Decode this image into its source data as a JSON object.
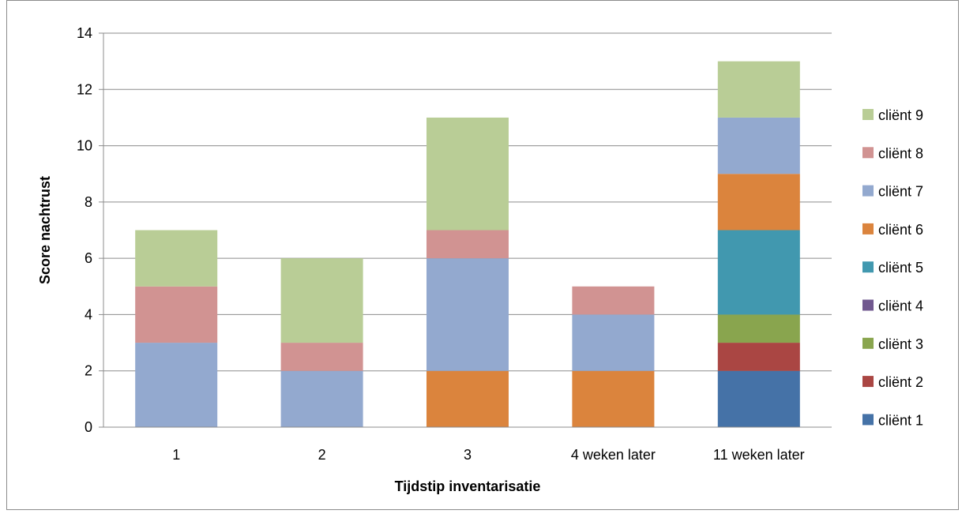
{
  "chart_data": {
    "type": "bar",
    "stacked": true,
    "title": "",
    "xlabel": "Tijdstip inventarisatie",
    "ylabel": "Score nachtrust",
    "ylim": [
      0,
      14
    ],
    "yticks": [
      "0",
      "2",
      "4",
      "6",
      "8",
      "10",
      "12",
      "14"
    ],
    "grid": true,
    "legend_position": "right",
    "categories": [
      "1",
      "2",
      "3",
      "4 weken later",
      "11 weken later"
    ],
    "series": [
      {
        "name": "cliënt 1",
        "color": "#4572a7",
        "values": [
          0,
          0,
          0,
          0,
          2
        ]
      },
      {
        "name": "cliënt 2",
        "color": "#aa4643",
        "values": [
          0,
          0,
          0,
          0,
          1
        ]
      },
      {
        "name": "cliënt 3",
        "color": "#89a54e",
        "values": [
          0,
          0,
          0,
          0,
          1
        ]
      },
      {
        "name": "cliënt 4",
        "color": "#71588f",
        "values": [
          0,
          0,
          0,
          0,
          0
        ]
      },
      {
        "name": "cliënt 5",
        "color": "#4198af",
        "values": [
          0,
          0,
          0,
          0,
          3
        ]
      },
      {
        "name": "cliënt 6",
        "color": "#db843d",
        "values": [
          0,
          0,
          2,
          2,
          2
        ]
      },
      {
        "name": "cliënt 7",
        "color": "#93a9cf",
        "values": [
          3,
          2,
          4,
          2,
          2
        ]
      },
      {
        "name": "cliënt 8",
        "color": "#d19392",
        "values": [
          2,
          1,
          1,
          1,
          0
        ]
      },
      {
        "name": "cliënt 9",
        "color": "#b9cd96",
        "values": [
          2,
          3,
          4,
          0,
          2
        ]
      }
    ]
  }
}
